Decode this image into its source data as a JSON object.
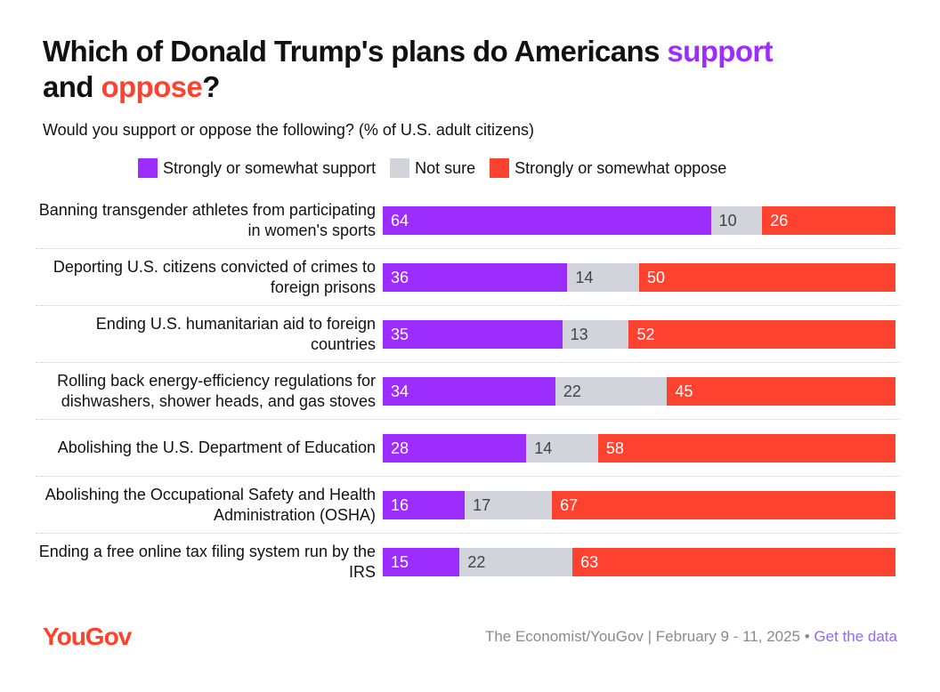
{
  "chart_data": {
    "type": "stacked-bar",
    "title": [
      "Which of Donald Trump's plans do Americans ",
      "support",
      " and ",
      "oppose",
      "?"
    ],
    "subtitle": "Would you support or oppose the following? (% of U.S. adult citizens)",
    "categories": [
      "Banning transgender athletes from participating in women's sports",
      "Deporting U.S. citizens convicted of crimes to foreign prisons",
      "Ending U.S. humanitarian aid to foreign countries",
      "Rolling back energy-efficiency regulations for dishwashers, shower heads, and gas stoves",
      "Abolishing the U.S. Department of Education",
      "Abolishing the Occupational Safety and Health Administration (OSHA)",
      "Ending a free online tax filing system run by the IRS"
    ],
    "series": [
      {
        "name": "Strongly or somewhat support",
        "color": "#9d2cff",
        "values": [
          64,
          36,
          35,
          34,
          28,
          16,
          15
        ]
      },
      {
        "name": "Not sure",
        "color": "#d2d4dc",
        "values": [
          10,
          14,
          13,
          22,
          14,
          17,
          22
        ]
      },
      {
        "name": "Strongly or somewhat oppose",
        "color": "#ff4130",
        "values": [
          26,
          50,
          52,
          45,
          58,
          67,
          63
        ]
      }
    ],
    "xlim": [
      0,
      100
    ],
    "logo": "YouGov",
    "source": "The Economist/YouGov | February 9 - 11, 2025 •",
    "link": "Get the data"
  }
}
